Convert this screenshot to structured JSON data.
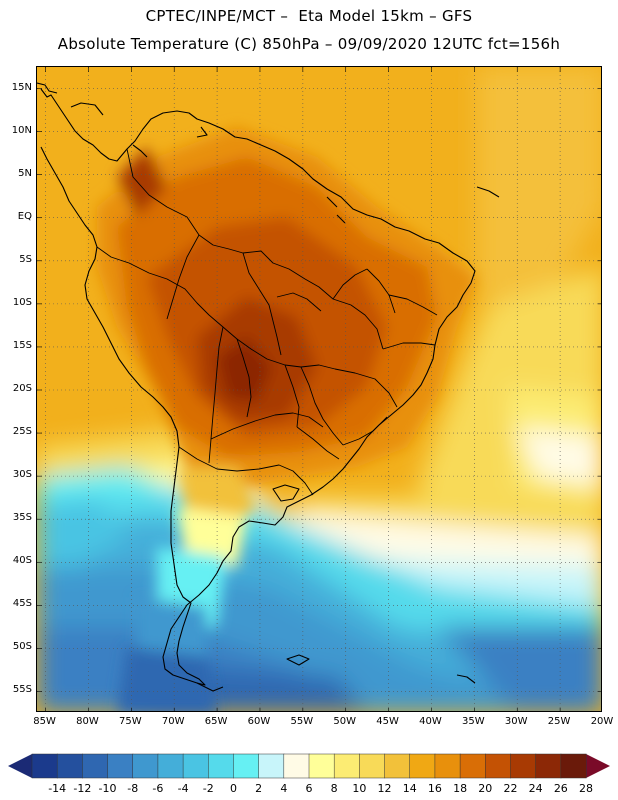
{
  "header": {
    "line1": "CPTEC/INPE/MCT –  Eta Model 15km – GFS",
    "line2": "Absolute Temperature (C) 850hPa – 09/09/2020 12UTC fct=156h"
  },
  "axes": {
    "lat_labels": [
      "15N",
      "10N",
      "5N",
      "EQ",
      "5S",
      "10S",
      "15S",
      "20S",
      "25S",
      "30S",
      "35S",
      "40S",
      "45S",
      "50S",
      "55S"
    ],
    "lat_values": [
      15,
      10,
      5,
      0,
      -5,
      -10,
      -15,
      -20,
      -25,
      -30,
      -35,
      -40,
      -45,
      -50,
      -55
    ],
    "lon_labels": [
      "85W",
      "80W",
      "75W",
      "70W",
      "65W",
      "60W",
      "55W",
      "50W",
      "45W",
      "40W",
      "35W",
      "30W",
      "25W",
      "20W"
    ],
    "lon_values": [
      -85,
      -80,
      -75,
      -70,
      -65,
      -60,
      -55,
      -50,
      -45,
      -40,
      -35,
      -30,
      -25,
      -20
    ],
    "lat_range": [
      -57.5,
      17.5
    ],
    "lon_range": [
      -86,
      -20
    ]
  },
  "colorbar": {
    "labels": [
      "-14",
      "-12",
      "-10",
      "-8",
      "-6",
      "-4",
      "-2",
      "0",
      "2",
      "4",
      "6",
      "8",
      "10",
      "12",
      "14",
      "16",
      "18",
      "20",
      "22",
      "24",
      "26",
      "28"
    ],
    "colors": [
      "#1b3a8c",
      "#24509e",
      "#2f67b1",
      "#3a80c3",
      "#3f98cf",
      "#44aed9",
      "#4ac4e3",
      "#55daeb",
      "#66f0f3",
      "#c8f5fa",
      "#fffbe6",
      "#ffff99",
      "#fcec73",
      "#f8da58",
      "#f2c13a",
      "#f0a814",
      "#e8900c",
      "#d96e06",
      "#c45204",
      "#a83a03",
      "#8c2806",
      "#6a1a0a"
    ],
    "left_arrow_color": "#1b2a75",
    "right_arrow_color": "#7a0a28"
  }
}
